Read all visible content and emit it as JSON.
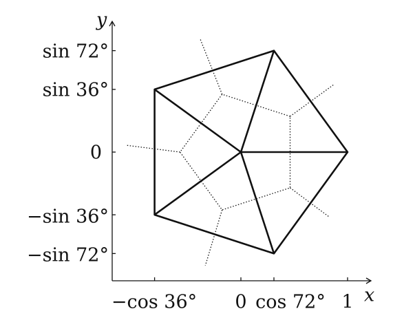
{
  "axes": {
    "x_label": "x",
    "y_label": "y"
  },
  "y_ticks": [
    "sin 72°",
    "sin 36°",
    "0",
    "−sin 36°",
    "−sin 72°"
  ],
  "x_ticks": [
    "−cos 36°",
    "0",
    "cos 72°",
    "1"
  ]
}
